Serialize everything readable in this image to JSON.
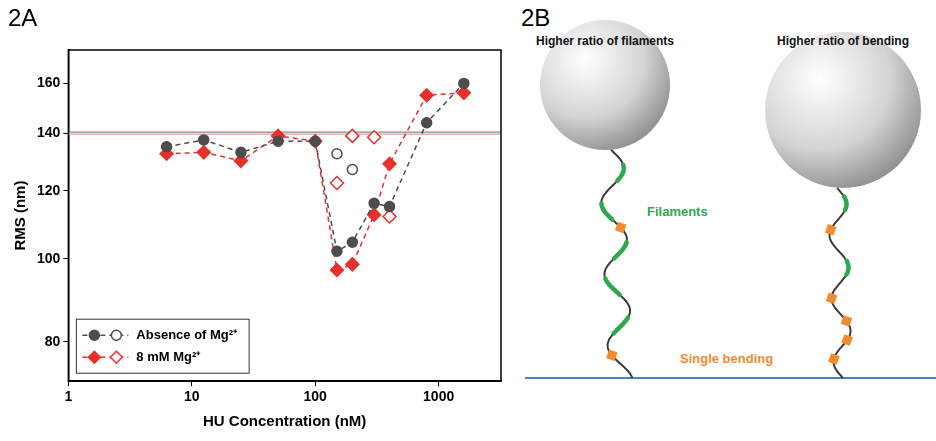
{
  "chart_data": {
    "type": "line",
    "panel": "2A",
    "x_label": "HU Concentration (nM)",
    "y_label": "RMS (nm)",
    "log": true,
    "grid": false,
    "legend": "lower left",
    "xlim": [
      1,
      3200
    ],
    "xticks": [
      1,
      10,
      100,
      1000
    ],
    "ylim": [
      72,
      175
    ],
    "yticks": [
      80,
      100,
      120,
      140,
      160
    ],
    "reference_line": 140,
    "series": [
      {
        "name": "Absence of Mg²⁺",
        "color": "#4d4d4d",
        "marker": "circle",
        "line_style": "dashed",
        "x": [
          6.25,
          12.5,
          25,
          50,
          100,
          150,
          200,
          300,
          400,
          800,
          1600
        ],
        "values": [
          135,
          137.5,
          133,
          137,
          137,
          102,
          104.5,
          116,
          115,
          144,
          160
        ]
      },
      {
        "color": "#4d4d4d",
        "marker": "open_circle",
        "line_style": "none",
        "x": [
          150,
          200
        ],
        "values": [
          132.5,
          127
        ]
      },
      {
        "name": "8 mM Mg²⁺",
        "color": "#e8302c",
        "marker": "diamond",
        "line_style": "dashed",
        "x": [
          6.25,
          12.5,
          25,
          50,
          100,
          150,
          200,
          300,
          400,
          800,
          1600
        ],
        "values": [
          132.5,
          133,
          130,
          139,
          137,
          97,
          98.5,
          112.5,
          129,
          155,
          156
        ]
      },
      {
        "color": "#e8302c",
        "marker": "open_diamond",
        "line_style": "none",
        "x": [
          150,
          200,
          300,
          400
        ],
        "values": [
          122.5,
          139,
          138.5,
          112
        ]
      }
    ]
  },
  "diagram": {
    "panel": "2B",
    "left": {
      "title": "Higher ratio of filaments",
      "label": "Filaments"
    },
    "right": {
      "title": "Higher ratio of bending",
      "label": "Single bending"
    }
  }
}
